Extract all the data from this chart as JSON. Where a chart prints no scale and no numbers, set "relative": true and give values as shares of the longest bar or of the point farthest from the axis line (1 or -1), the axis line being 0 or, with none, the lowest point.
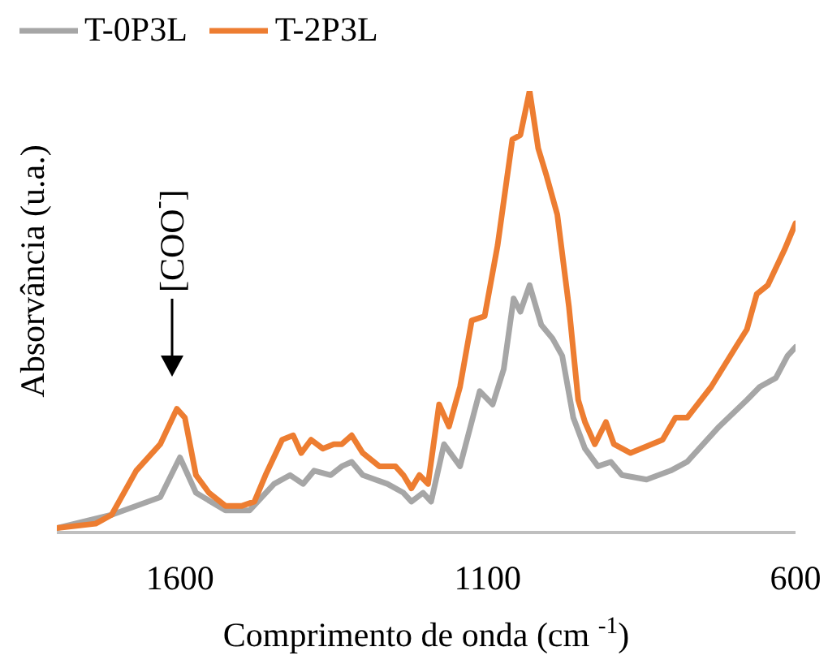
{
  "chart_data": {
    "type": "line",
    "relative": true,
    "xlabel": "Comprimento de onda (cm $^{-1}$)",
    "ylabel": "Absorvância (u.a.)",
    "xlim": [
      1800,
      600
    ],
    "xticks": [
      1600,
      1100,
      600
    ],
    "grid": false,
    "legend": "top left",
    "marker": "none",
    "line_style": "solid",
    "annotations": [
      "[COO$^{-}$]"
    ],
    "series": [
      {
        "name": "T-0P3L",
        "color": "#a6a6a6",
        "x": [
          1800,
          1711,
          1632,
          1600,
          1574,
          1526,
          1487,
          1447,
          1421,
          1400,
          1382,
          1355,
          1337,
          1321,
          1303,
          1263,
          1237,
          1224,
          1205,
          1192,
          1171,
          1145,
          1113,
          1092,
          1074,
          1058,
          1047,
          1032,
          1013,
          995,
          979,
          961,
          942,
          921,
          900,
          882,
          842,
          803,
          776,
          724,
          679,
          658,
          632,
          613,
          600
        ],
        "values": [
          0.01,
          0.04,
          0.08,
          0.17,
          0.09,
          0.05,
          0.05,
          0.11,
          0.13,
          0.11,
          0.14,
          0.13,
          0.15,
          0.16,
          0.13,
          0.11,
          0.09,
          0.07,
          0.09,
          0.07,
          0.2,
          0.15,
          0.32,
          0.29,
          0.37,
          0.53,
          0.5,
          0.56,
          0.47,
          0.44,
          0.4,
          0.26,
          0.19,
          0.15,
          0.16,
          0.13,
          0.12,
          0.14,
          0.16,
          0.24,
          0.3,
          0.33,
          0.35,
          0.4,
          0.42
        ]
      },
      {
        "name": "T-2P3L",
        "color": "#ed7d31",
        "x": [
          1800,
          1737,
          1711,
          1671,
          1632,
          1605,
          1592,
          1574,
          1553,
          1526,
          1500,
          1479,
          1461,
          1434,
          1416,
          1403,
          1387,
          1368,
          1350,
          1337,
          1321,
          1303,
          1276,
          1250,
          1237,
          1224,
          1211,
          1197,
          1179,
          1163,
          1145,
          1126,
          1105,
          1084,
          1060,
          1047,
          1032,
          1018,
          1005,
          987,
          968,
          953,
          942,
          926,
          908,
          895,
          868,
          816,
          795,
          776,
          737,
          697,
          679,
          663,
          645,
          618,
          600
        ],
        "values": [
          0.01,
          0.02,
          0.04,
          0.14,
          0.2,
          0.28,
          0.26,
          0.13,
          0.09,
          0.06,
          0.06,
          0.07,
          0.13,
          0.21,
          0.22,
          0.18,
          0.21,
          0.19,
          0.2,
          0.2,
          0.22,
          0.18,
          0.15,
          0.15,
          0.13,
          0.1,
          0.13,
          0.11,
          0.29,
          0.24,
          0.33,
          0.48,
          0.49,
          0.65,
          0.89,
          0.9,
          1,
          0.87,
          0.81,
          0.72,
          0.51,
          0.3,
          0.25,
          0.2,
          0.25,
          0.2,
          0.18,
          0.21,
          0.26,
          0.26,
          0.33,
          0.42,
          0.46,
          0.54,
          0.56,
          0.64,
          0.7
        ]
      }
    ]
  }
}
